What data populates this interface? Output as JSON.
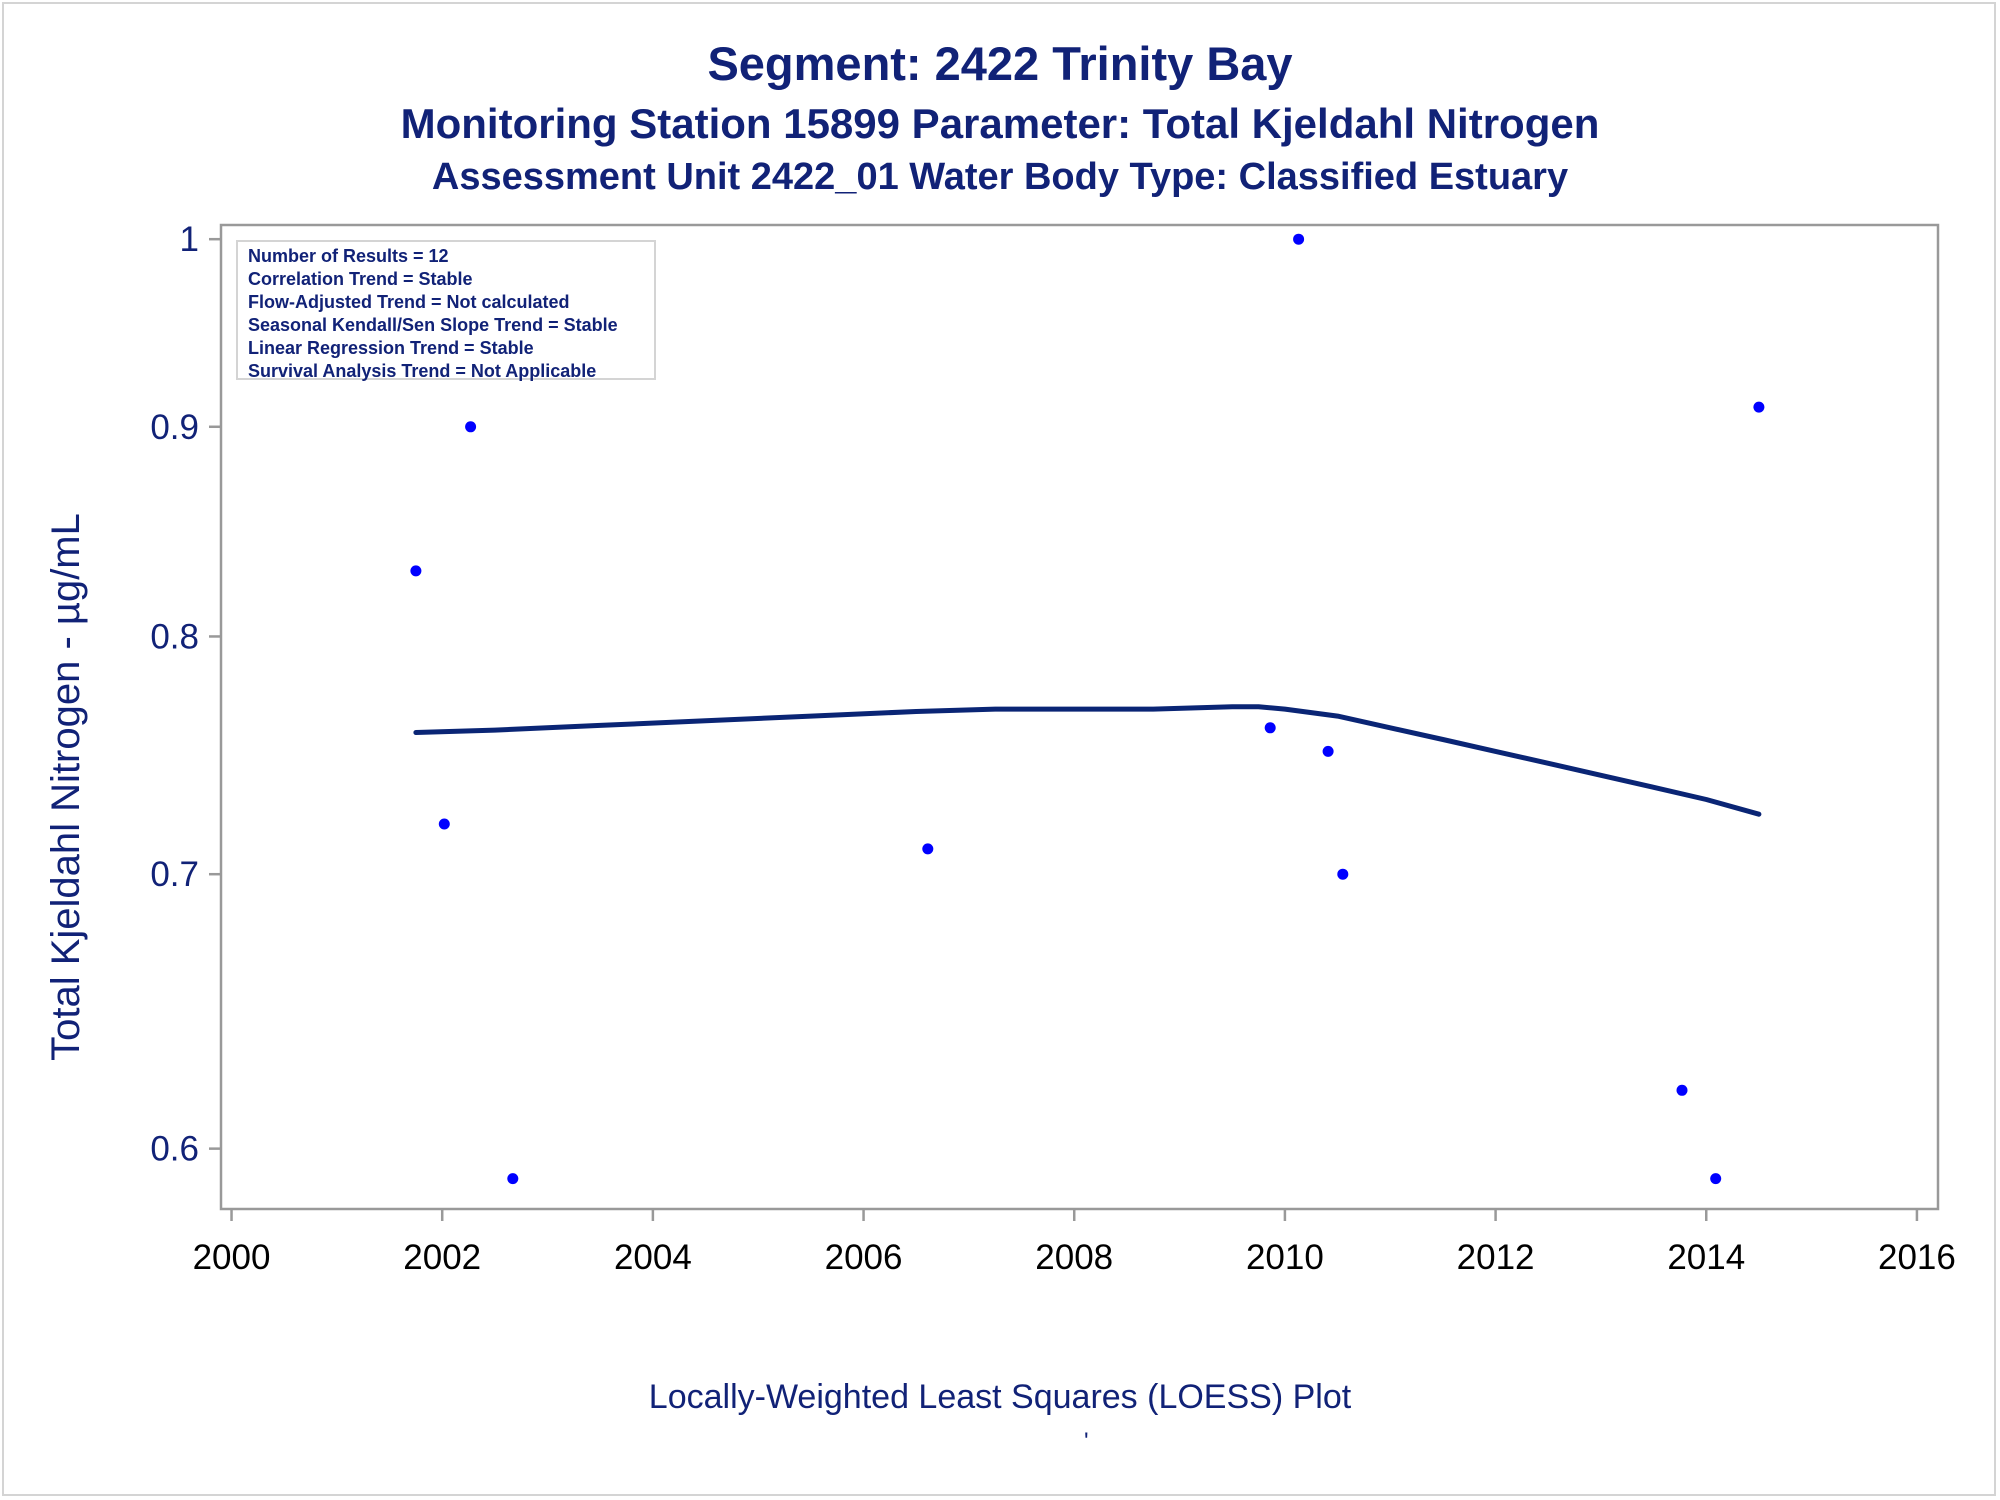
{
  "titles": {
    "line1": "Segment: 2422  Trinity Bay",
    "line2": "Monitoring Station 15899 Parameter: Total Kjeldahl Nitrogen",
    "line3": "Assessment Unit 2422_01   Water Body Type: Classified Estuary"
  },
  "stats": [
    "Number of Results = 12",
    "Correlation Trend = Stable",
    "Flow-Adjusted Trend = Not calculated",
    "Seasonal Kendall/Sen Slope Trend = Stable",
    "Linear Regression Trend = Stable",
    "Survival Analysis Trend = Not Applicable"
  ],
  "footnote": "Locally-Weighted Least Squares (LOESS) Plot",
  "footnote_mark": "'",
  "colors": {
    "text": "#112277",
    "points": "#0000ff",
    "line": "#0a2575",
    "frame": "#999999"
  },
  "chart_data": {
    "type": "scatter",
    "ylabel": "Total Kjeldahl Nitrogen -  µg/mL",
    "xlabel": "",
    "xlim": [
      1999.9,
      2016.2
    ],
    "ylim": [
      0.58,
      1.008
    ],
    "y_scale": "log",
    "xticks": [
      2000,
      2002,
      2004,
      2006,
      2008,
      2010,
      2012,
      2014,
      2016
    ],
    "yticks": [
      0.6,
      0.7,
      0.8,
      0.9,
      1
    ],
    "ytick_labels": [
      "0.6",
      "0.7",
      "0.8",
      "0.9",
      "1"
    ],
    "grid": false,
    "series": [
      {
        "kind": "points",
        "x": [
          2001.75,
          2002.02,
          2002.27,
          2002.67,
          2006.61,
          2009.86,
          2010.13,
          2010.41,
          2010.55,
          2013.77,
          2014.09,
          2014.5
        ],
        "y": [
          0.83,
          0.72,
          0.9,
          0.59,
          0.71,
          0.76,
          1.0,
          0.75,
          0.7,
          0.62,
          0.59,
          0.91
        ]
      },
      {
        "kind": "loess",
        "x": [
          2001.75,
          2002.5,
          2003.5,
          2004.5,
          2005.5,
          2006.5,
          2007.25,
          2008.0,
          2008.75,
          2009.5,
          2009.75,
          2010.0,
          2010.5,
          2011.0,
          2011.5,
          2012.0,
          2012.5,
          2013.0,
          2013.5,
          2014.0,
          2014.5
        ],
        "y": [
          0.758,
          0.759,
          0.761,
          0.763,
          0.765,
          0.767,
          0.768,
          0.768,
          0.768,
          0.769,
          0.769,
          0.768,
          0.765,
          0.76,
          0.755,
          0.75,
          0.745,
          0.74,
          0.735,
          0.73,
          0.724
        ]
      }
    ]
  }
}
